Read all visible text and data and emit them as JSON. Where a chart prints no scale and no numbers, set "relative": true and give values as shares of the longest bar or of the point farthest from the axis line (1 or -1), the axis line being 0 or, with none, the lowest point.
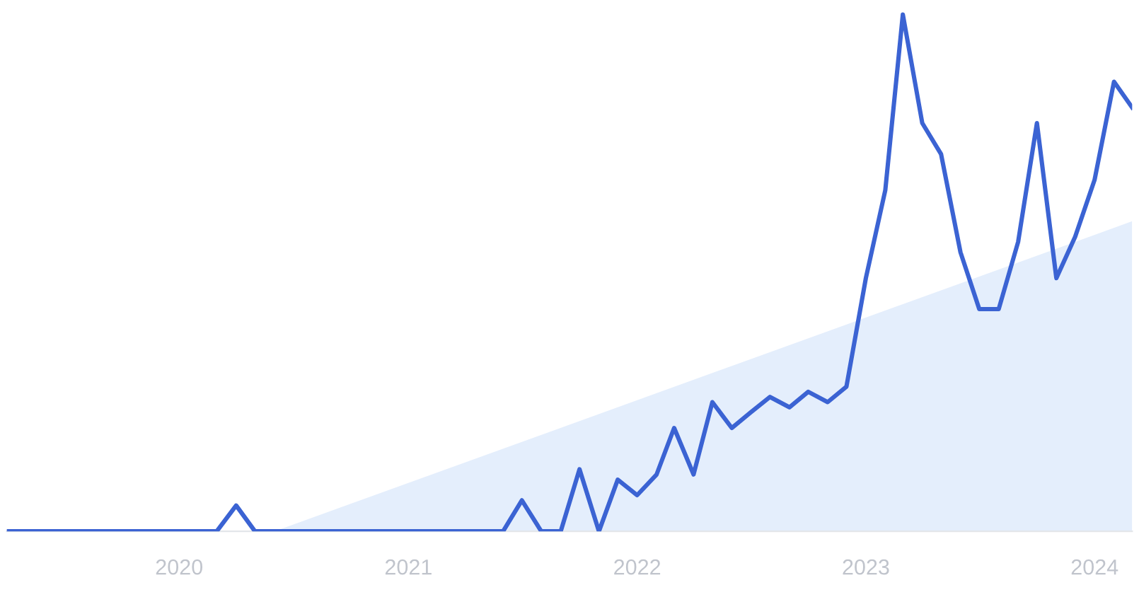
{
  "chart_data": {
    "type": "line",
    "relative": true,
    "legend": false,
    "grid": false,
    "xlim": [
      "2019-04",
      "2024-03"
    ],
    "xticks": [
      "2020",
      "2021",
      "2022",
      "2023",
      "2024"
    ],
    "series": [
      {
        "type": "area",
        "color": "#e4eefc",
        "x": [
          "2020-06",
          "2024-03"
        ],
        "values": [
          0,
          0.6
        ]
      },
      {
        "color": "#3b63d3",
        "x": [
          "2019-04",
          "2019-05",
          "2019-06",
          "2019-07",
          "2019-08",
          "2019-09",
          "2019-10",
          "2019-11",
          "2019-12",
          "2020-01",
          "2020-02",
          "2020-03",
          "2020-04",
          "2020-05",
          "2020-06",
          "2020-07",
          "2020-08",
          "2020-09",
          "2020-10",
          "2020-11",
          "2020-12",
          "2021-01",
          "2021-02",
          "2021-03",
          "2021-04",
          "2021-05",
          "2021-06",
          "2021-07",
          "2021-08",
          "2021-09",
          "2021-10",
          "2021-11",
          "2021-12",
          "2022-01",
          "2022-02",
          "2022-03",
          "2022-04",
          "2022-05",
          "2022-06",
          "2022-07",
          "2022-08",
          "2022-09",
          "2022-10",
          "2022-11",
          "2022-12",
          "2023-01",
          "2023-02",
          "2023-03",
          "2023-04",
          "2023-05",
          "2023-06",
          "2023-07",
          "2023-08",
          "2023-09",
          "2023-10",
          "2023-11",
          "2023-12",
          "2024-01",
          "2024-02",
          "2024-03"
        ],
        "values": [
          0,
          0,
          0,
          0,
          0,
          0,
          0,
          0,
          0,
          0,
          0,
          0,
          0.05,
          0,
          0,
          0,
          0,
          0,
          0,
          0,
          0,
          0,
          0,
          0,
          0,
          0,
          0,
          0.06,
          0,
          0,
          0.12,
          0,
          0.1,
          0.07,
          0.11,
          0.2,
          0.11,
          0.25,
          0.2,
          0.23,
          0.26,
          0.24,
          0.27,
          0.25,
          0.28,
          0.49,
          0.66,
          1,
          0.79,
          0.73,
          0.54,
          0.43,
          0.43,
          0.56,
          0.79,
          0.49,
          0.57,
          0.68,
          0.87,
          0.82
        ]
      }
    ]
  }
}
